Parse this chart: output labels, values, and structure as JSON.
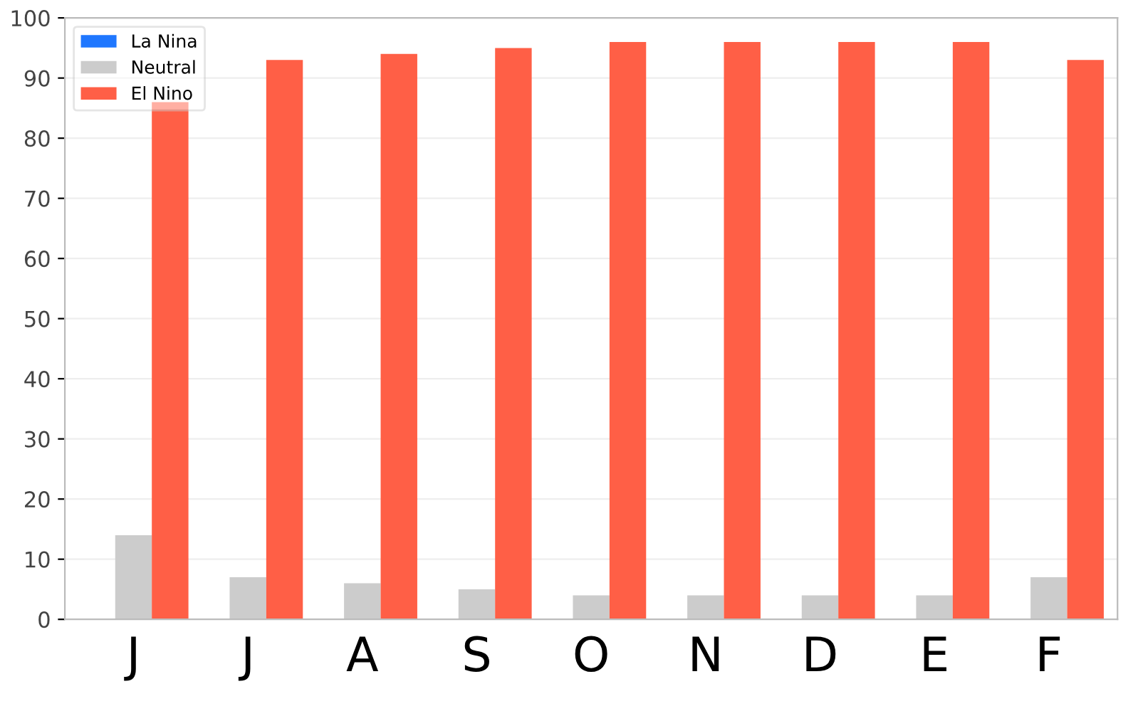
{
  "chart_data": {
    "type": "bar",
    "categories": [
      "J",
      "J",
      "A",
      "S",
      "O",
      "N",
      "D",
      "E",
      "F"
    ],
    "series": [
      {
        "name": "La Nina",
        "color": "#1f77ff",
        "values": [
          0,
          0,
          0,
          0,
          0,
          0,
          0,
          0,
          0
        ]
      },
      {
        "name": "Neutral",
        "color": "#cccccc",
        "values": [
          14,
          7,
          6,
          5,
          4,
          4,
          4,
          4,
          7
        ]
      },
      {
        "name": "El Nino",
        "color": "#ff5f46",
        "values": [
          86,
          93,
          94,
          95,
          96,
          96,
          96,
          96,
          93
        ]
      }
    ],
    "ylim": [
      0,
      100
    ],
    "yticks": [
      0,
      10,
      20,
      30,
      40,
      50,
      60,
      70,
      80,
      90,
      100
    ],
    "grid": "y",
    "legend": "top left"
  }
}
